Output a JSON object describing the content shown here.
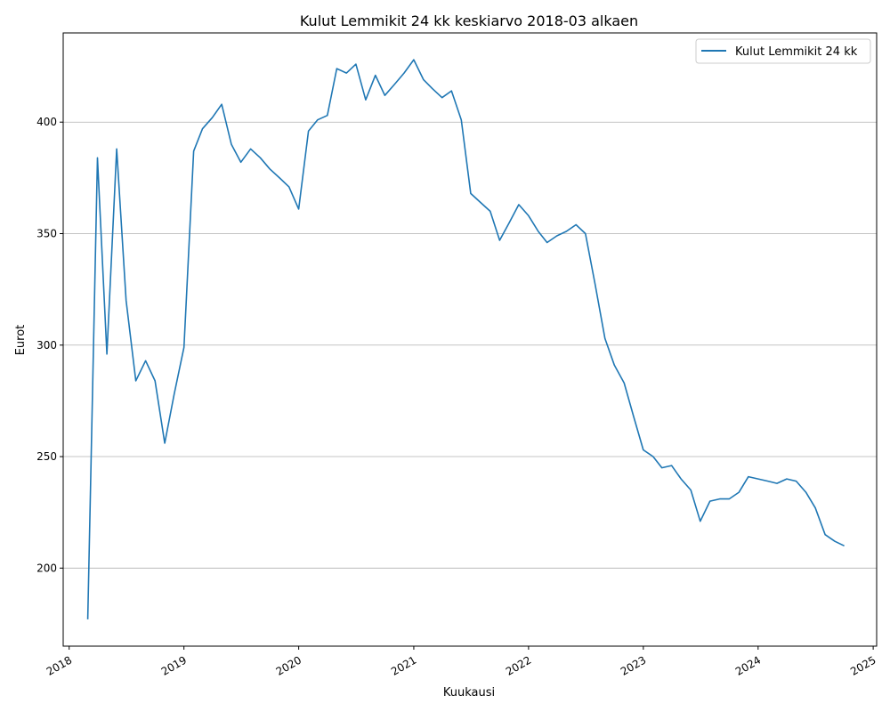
{
  "chart_data": {
    "type": "line",
    "title": "Kulut Lemmikit 24 kk keskiarvo 2018-03 alkaen",
    "xlabel": "Kuukausi",
    "ylabel": "Eurot",
    "xlim": [
      "2017-12-13",
      "2025-01-12"
    ],
    "ylim": [
      165,
      440
    ],
    "x_ticks": [
      "2018",
      "2019",
      "2020",
      "2021",
      "2022",
      "2023",
      "2024",
      "2025"
    ],
    "y_ticks": [
      200,
      250,
      300,
      350,
      400
    ],
    "grid": "y",
    "legend": "top-right",
    "line_color": "#1f77b4",
    "series": [
      {
        "name": "Kulut Lemmikit 24 kk",
        "x": [
          "2018-03",
          "2018-04",
          "2018-05",
          "2018-06",
          "2018-07",
          "2018-08",
          "2018-09",
          "2018-10",
          "2018-11",
          "2018-12",
          "2019-01",
          "2019-02",
          "2019-03",
          "2019-04",
          "2019-05",
          "2019-06",
          "2019-07",
          "2019-08",
          "2019-09",
          "2019-10",
          "2019-11",
          "2019-12",
          "2020-01",
          "2020-02",
          "2020-03",
          "2020-04",
          "2020-05",
          "2020-06",
          "2020-07",
          "2020-08",
          "2020-09",
          "2020-10",
          "2020-11",
          "2020-12",
          "2021-01",
          "2021-02",
          "2021-03",
          "2021-04",
          "2021-05",
          "2021-06",
          "2021-07",
          "2021-08",
          "2021-09",
          "2021-10",
          "2021-11",
          "2021-12",
          "2022-01",
          "2022-02",
          "2022-03",
          "2022-04",
          "2022-05",
          "2022-06",
          "2022-07",
          "2022-08",
          "2022-09",
          "2022-10",
          "2022-11",
          "2022-12",
          "2023-01",
          "2023-02",
          "2023-03",
          "2023-04",
          "2023-05",
          "2023-06",
          "2023-07",
          "2023-08",
          "2023-09",
          "2023-10",
          "2023-11",
          "2023-12",
          "2024-01",
          "2024-02",
          "2024-03",
          "2024-04",
          "2024-05",
          "2024-06",
          "2024-07",
          "2024-08",
          "2024-09",
          "2024-10"
        ],
        "y": [
          177,
          384,
          296,
          388,
          320,
          284,
          293,
          284,
          256,
          278,
          299,
          387,
          397,
          402,
          408,
          390,
          382,
          388,
          384,
          379,
          375,
          371,
          361,
          396,
          401,
          403,
          424,
          422,
          426,
          410,
          421,
          412,
          417,
          422,
          428,
          419,
          415,
          411,
          414,
          401,
          368,
          364,
          360,
          347,
          355,
          363,
          358,
          351,
          346,
          349,
          351,
          354,
          350,
          327,
          303,
          291,
          283,
          268,
          253,
          250,
          245,
          246,
          240,
          235,
          221,
          230,
          231,
          231,
          234,
          241,
          240,
          239,
          238,
          240,
          239,
          234,
          227,
          215,
          212,
          210
        ]
      }
    ]
  }
}
